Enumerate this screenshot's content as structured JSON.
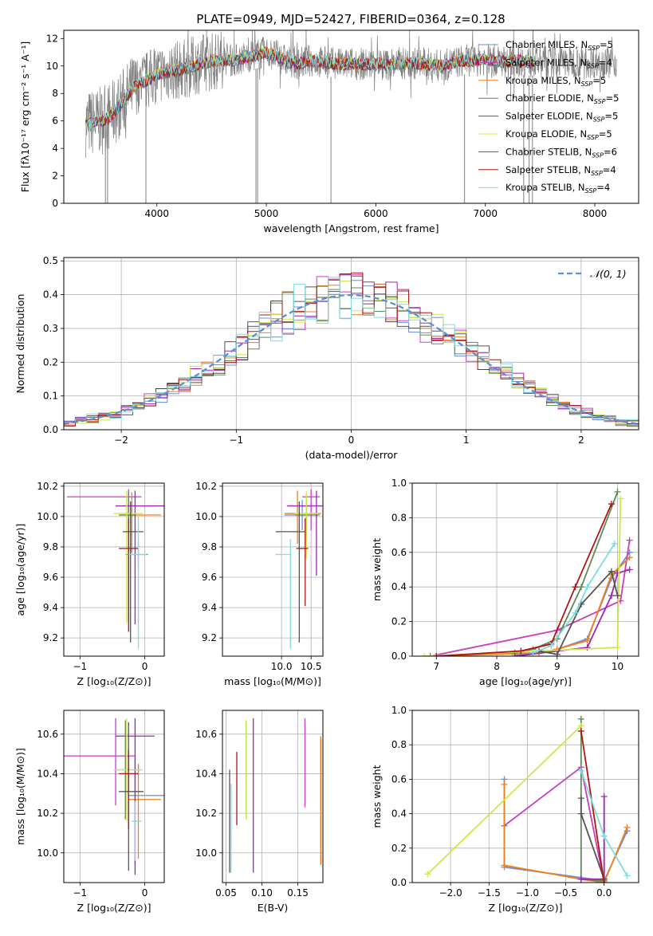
{
  "figure": {
    "title": "PLATE=0949, MJD=52427, FIBERID=0364, z=0.128"
  },
  "colors": {
    "Chabrier MILES": "#6b8fd6",
    "Salpeter MILES": "#c93dc0",
    "Kroupa MILES": "#f07f1a",
    "Chabrier ELODIE": "#5a8a5a",
    "Salpeter ELODIE": "#9b27b0",
    "Kroupa ELODIE": "#cde84a",
    "Chabrier STELIB": "#555555",
    "Salpeter STELIB": "#b01515",
    "Kroupa STELIB": "#7fdcdc",
    "data": "#808080",
    "gauss": "#5b8fd6"
  },
  "chart_data": [
    {
      "id": "spectrum",
      "type": "line",
      "xlabel": "wavelength [Angstrom, rest frame]",
      "ylabel": "Flux [fλ10⁻¹⁷ erg cm⁻² s⁻¹ A⁻¹]",
      "xlim": [
        3150,
        8400
      ],
      "ylim": [
        0,
        12.6
      ],
      "xticks": [
        "4000",
        "5000",
        "6000",
        "7000",
        "8000"
      ],
      "yticks": [
        "0",
        "2",
        "4",
        "6",
        "8",
        "10",
        "12"
      ],
      "legend_position": "top-right",
      "legend": [
        {
          "name": "Chabrier MILES",
          "nssp": "5"
        },
        {
          "name": "Salpeter MILES",
          "nssp": "4"
        },
        {
          "name": "Kroupa MILES",
          "nssp": "5"
        },
        {
          "name": "Chabrier ELODIE",
          "nssp": "5"
        },
        {
          "name": "Salpeter ELODIE",
          "nssp": "5"
        },
        {
          "name": "Kroupa ELODIE",
          "nssp": "5"
        },
        {
          "name": "Chabrier STELIB",
          "nssp": "6"
        },
        {
          "name": "Salpeter STELIB",
          "nssp": "4"
        },
        {
          "name": "Kroupa STELIB",
          "nssp": "4"
        }
      ],
      "legend_prefix": "N",
      "legend_sub": "SSP",
      "continuum": {
        "x": [
          3350,
          3500,
          3600,
          3700,
          3800,
          3900,
          4000,
          4100,
          4200,
          4300,
          4400,
          4500,
          4600,
          4700,
          4800,
          4900,
          5000,
          5100,
          5200,
          5300,
          5400,
          5500,
          5600,
          5700,
          5800,
          5900,
          6000,
          6100,
          6200,
          6300,
          6400,
          6500,
          6600,
          6700,
          6800,
          6900,
          7000,
          7100,
          7200,
          7300,
          7400
        ],
        "y": [
          5.8,
          6.0,
          6.5,
          7.5,
          8.6,
          8.9,
          9.4,
          9.6,
          9.7,
          9.9,
          10.2,
          10.3,
          10.5,
          10.4,
          10.6,
          10.8,
          11.0,
          10.7,
          10.3,
          10.2,
          10.4,
          10.3,
          10.2,
          10.1,
          10.2,
          10.1,
          10.2,
          10.1,
          10.2,
          10.2,
          10.2,
          10.1,
          10.0,
          10.2,
          10.4,
          10.4,
          10.5,
          10.4,
          10.3,
          10.4,
          10.3
        ]
      },
      "data_extent": [
        3350,
        8200
      ],
      "models_extent": [
        3350,
        7450
      ],
      "absorption_dips": [
        3530,
        3550,
        3900,
        4905,
        4920,
        5590,
        6810,
        7350,
        7400,
        7430
      ]
    },
    {
      "id": "residuals",
      "type": "step",
      "xlabel": "(data-model)/error",
      "ylabel": "Normed distribution",
      "xlim": [
        -2.5,
        2.5
      ],
      "ylim": [
        0,
        0.51
      ],
      "xticks": [
        "−2",
        "−1",
        "0",
        "1",
        "2"
      ],
      "yticks": [
        "0.0",
        "0.1",
        "0.2",
        "0.3",
        "0.4",
        "0.5"
      ],
      "bin_width": 0.1,
      "gauss_label": "𝒩(0, 1)",
      "legend_position": "top-right"
    },
    {
      "id": "age_vs_z",
      "type": "errorbar",
      "xlabel": "Z [log₁₀(Z/Z⊙)]",
      "ylabel": "age  [log₁₀(age/yr)]",
      "xlim": [
        -1.25,
        0.3
      ],
      "ylim": [
        9.08,
        10.22
      ],
      "xticks": [
        "−1",
        "0"
      ],
      "yticks": [
        "9.2",
        "9.4",
        "9.6",
        "9.8",
        "10.0",
        "10.2"
      ],
      "points": [
        {
          "s": "Chabrier MILES",
          "x": -0.1,
          "xe": [
            0.2,
            0.15
          ],
          "y": 9.75,
          "ye": [
            0.1,
            0.1
          ]
        },
        {
          "s": "Salpeter MILES",
          "x": -0.25,
          "xe": [
            0.95,
            0.2
          ],
          "y": 10.13,
          "ye": [
            0.22,
            0.05
          ]
        },
        {
          "s": "Kroupa MILES",
          "x": -0.2,
          "xe": [
            0.2,
            0.45
          ],
          "y": 10.01,
          "ye": [
            0.25,
            0.15
          ]
        },
        {
          "s": "Chabrier ELODIE",
          "x": -0.25,
          "xe": [
            0.15,
            0.1
          ],
          "y": 10.01,
          "ye": [
            0.7,
            0.15
          ]
        },
        {
          "s": "Salpeter ELODIE",
          "x": -0.15,
          "xe": [
            0.3,
            0.45
          ],
          "y": 10.07,
          "ye": [
            0.78,
            0.1
          ]
        },
        {
          "s": "Kroupa ELODIE",
          "x": -0.28,
          "xe": [
            0.2,
            0.25
          ],
          "y": 10.02,
          "ye": [
            0.72,
            0.15
          ]
        },
        {
          "s": "Chabrier STELIB",
          "x": -0.22,
          "xe": [
            0.12,
            0.2
          ],
          "y": 9.9,
          "ye": [
            0.73,
            0.2
          ]
        },
        {
          "s": "Salpeter STELIB",
          "x": -0.25,
          "xe": [
            0.15,
            0.15
          ],
          "y": 9.79,
          "ye": [
            0.55,
            0.2
          ]
        },
        {
          "s": "Kroupa STELIB",
          "x": -0.1,
          "xe": [
            0.15,
            0.12
          ],
          "y": 9.75,
          "ye": [
            0.62,
            0.25
          ]
        }
      ]
    },
    {
      "id": "age_vs_mass",
      "type": "errorbar",
      "xlabel": "mass [log₁₀(M/M⊙)]",
      "ylabel": "",
      "xlim": [
        9.0,
        10.7
      ],
      "ylim": [
        9.08,
        10.22
      ],
      "xticks": [
        "10.0",
        "10.5"
      ],
      "yticks": [
        "9.2",
        "9.4",
        "9.6",
        "9.8",
        "10.0",
        "10.2"
      ],
      "points": [
        {
          "s": "Chabrier MILES",
          "x": 10.35,
          "xe": [
            0.3,
            0.3
          ],
          "y": 10.01,
          "ye": [
            0.1,
            0.1
          ]
        },
        {
          "s": "Salpeter MILES",
          "x": 10.5,
          "xe": [
            0.15,
            0.15
          ],
          "y": 10.13,
          "ye": [
            0.22,
            0.05
          ]
        },
        {
          "s": "Kroupa MILES",
          "x": 10.27,
          "xe": [
            0.22,
            0.4
          ],
          "y": 10.02,
          "ye": [
            0.2,
            0.15
          ]
        },
        {
          "s": "Chabrier ELODIE",
          "x": 10.42,
          "xe": [
            0.2,
            0.2
          ],
          "y": 10.01,
          "ye": [
            0.15,
            0.1
          ]
        },
        {
          "s": "Salpeter ELODIE",
          "x": 10.59,
          "xe": [
            0.5,
            0.1
          ],
          "y": 10.07,
          "ye": [
            0.46,
            0.1
          ]
        },
        {
          "s": "Kroupa ELODIE",
          "x": 10.42,
          "xe": [
            0.2,
            0.2
          ],
          "y": 10.02,
          "ye": [
            0.3,
            0.15
          ]
        },
        {
          "s": "Chabrier STELIB",
          "x": 10.3,
          "xe": [
            0.4,
            0.1
          ],
          "y": 9.9,
          "ye": [
            0.73,
            0.2
          ]
        },
        {
          "s": "Salpeter STELIB",
          "x": 10.4,
          "xe": [
            0.15,
            0.05
          ],
          "y": 9.79,
          "ye": [
            0.38,
            0.2
          ]
        },
        {
          "s": "Kroupa STELIB",
          "x": 10.15,
          "xe": [
            0.25,
            0.0
          ],
          "y": 9.75,
          "ye": [
            0.62,
            0.1
          ]
        }
      ]
    },
    {
      "id": "weight_vs_age",
      "type": "line",
      "xlabel": "age  [log₁₀(age/yr)]",
      "ylabel": "mass weight",
      "xlim": [
        6.6,
        10.35
      ],
      "ylim": [
        0,
        1.0
      ],
      "xticks": [
        "7",
        "8",
        "9",
        "10"
      ],
      "yticks": [
        "0.0",
        "0.2",
        "0.4",
        "0.6",
        "0.8",
        "1.0"
      ],
      "series": [
        {
          "s": "Chabrier MILES",
          "x": [
            8.3,
            8.7,
            9.0,
            9.5,
            9.9,
            10.2
          ],
          "y": [
            0.01,
            0.02,
            0.04,
            0.1,
            0.45,
            0.6
          ]
        },
        {
          "s": "Salpeter MILES",
          "x": [
            6.9,
            9.0,
            10.05,
            10.2
          ],
          "y": [
            0.0,
            0.15,
            0.32,
            0.67
          ]
        },
        {
          "s": "Kroupa MILES",
          "x": [
            7.0,
            8.7,
            9.0,
            9.5,
            9.9,
            10.2
          ],
          "y": [
            0.0,
            0.02,
            0.04,
            0.09,
            0.47,
            0.57
          ]
        },
        {
          "s": "Chabrier ELODIE",
          "x": [
            8.3,
            8.6,
            9.0,
            9.4,
            10.0
          ],
          "y": [
            0.02,
            0.04,
            0.1,
            0.4,
            0.95
          ]
        },
        {
          "s": "Salpeter ELODIE",
          "x": [
            8.3,
            9.5,
            9.9,
            10.0,
            10.2
          ],
          "y": [
            0.0,
            0.05,
            0.35,
            0.48,
            0.5
          ]
        },
        {
          "s": "Kroupa ELODIE",
          "x": [
            6.8,
            10.0,
            10.05
          ],
          "y": [
            0.0,
            0.05,
            0.91
          ]
        },
        {
          "s": "Chabrier STELIB",
          "x": [
            8.7,
            9.0,
            9.4,
            9.9,
            10.0
          ],
          "y": [
            0.03,
            0.01,
            0.3,
            0.49,
            0.35
          ]
        },
        {
          "s": "Salpeter STELIB",
          "x": [
            7.0,
            8.4,
            8.9,
            9.3,
            9.9
          ],
          "y": [
            0.0,
            0.03,
            0.07,
            0.4,
            0.88
          ]
        },
        {
          "s": "Kroupa STELIB",
          "x": [
            8.6,
            8.9,
            9.3,
            9.5,
            9.95
          ],
          "y": [
            0.02,
            0.06,
            0.25,
            0.4,
            0.65
          ]
        }
      ]
    },
    {
      "id": "mass_vs_z",
      "type": "errorbar",
      "xlabel": "Z [log₁₀(Z/Z⊙)]",
      "ylabel": "mass [log₁₀(M/M⊙)]",
      "xlim": [
        -1.25,
        0.3
      ],
      "ylim": [
        9.85,
        10.72
      ],
      "xticks": [
        "−1",
        "0"
      ],
      "yticks": [
        "10.0",
        "10.2",
        "10.4",
        "10.6"
      ],
      "points": [
        {
          "s": "Chabrier MILES",
          "x": -0.15,
          "xe": [
            0.1,
            0.45
          ],
          "y": 10.29,
          "ye": [
            0.35,
            0.2
          ]
        },
        {
          "s": "Salpeter MILES",
          "x": -0.45,
          "xe": [
            0.8,
            0.3
          ],
          "y": 10.49,
          "ye": [
            0.25,
            0.19
          ]
        },
        {
          "s": "Kroupa MILES",
          "x": -0.1,
          "xe": [
            0.15,
            0.35
          ],
          "y": 10.27,
          "ye": [
            0.3,
            0.18
          ]
        },
        {
          "s": "Chabrier ELODIE",
          "x": -0.3,
          "xe": [
            0.15,
            0.25
          ],
          "y": 10.42,
          "ye": [
            0.25,
            0.25
          ]
        },
        {
          "s": "Salpeter ELODIE",
          "x": -0.15,
          "xe": [
            0.3,
            0.3
          ],
          "y": 10.59,
          "ye": [
            0.7,
            0.09
          ]
        },
        {
          "s": "Kroupa ELODIE",
          "x": -0.28,
          "xe": [
            0.2,
            0.25
          ],
          "y": 10.42,
          "ye": [
            0.26,
            0.26
          ]
        },
        {
          "s": "Chabrier STELIB",
          "x": -0.25,
          "xe": [
            0.15,
            0.23
          ],
          "y": 10.31,
          "ye": [
            0.4,
            0.35
          ]
        },
        {
          "s": "Salpeter STELIB",
          "x": -0.25,
          "xe": [
            0.15,
            0.15
          ],
          "y": 10.4,
          "ye": [
            0.28,
            0.12
          ]
        },
        {
          "s": "Kroupa STELIB",
          "x": -0.15,
          "xe": [
            0.05,
            0.1
          ],
          "y": 10.16,
          "ye": [
            0.2,
            0.1
          ]
        }
      ]
    },
    {
      "id": "mass_vs_ebv",
      "type": "errorbar",
      "xlabel": "E(B-V)",
      "ylabel": "",
      "xlim": [
        0.045,
        0.185
      ],
      "ylim": [
        9.85,
        10.72
      ],
      "xticks": [
        "0.05",
        "0.10",
        "0.15"
      ],
      "yticks": [
        "10.0",
        "10.2",
        "10.4",
        "10.6"
      ],
      "points": [
        {
          "s": "Chabrier MILES",
          "x": 0.182,
          "xe": [
            0,
            0
          ],
          "y": 10.29,
          "ye": [
            0.35,
            0.29
          ]
        },
        {
          "s": "Salpeter MILES",
          "x": 0.16,
          "xe": [
            0,
            0
          ],
          "y": 10.49,
          "ye": [
            0.26,
            0.19
          ]
        },
        {
          "s": "Kroupa MILES",
          "x": 0.182,
          "xe": [
            0,
            0
          ],
          "y": 10.27,
          "ye": [
            0.33,
            0.32
          ]
        },
        {
          "s": "Chabrier ELODIE",
          "x": 0.078,
          "xe": [
            0,
            0
          ],
          "y": 10.42,
          "ye": [
            0.25,
            0.25
          ]
        },
        {
          "s": "Salpeter ELODIE",
          "x": 0.088,
          "xe": [
            0,
            0
          ],
          "y": 10.59,
          "ye": [
            0.69,
            0.09
          ]
        },
        {
          "s": "Kroupa ELODIE",
          "x": 0.078,
          "xe": [
            0,
            0
          ],
          "y": 10.42,
          "ye": [
            0.25,
            0.25
          ]
        },
        {
          "s": "Chabrier STELIB",
          "x": 0.055,
          "xe": [
            0,
            0
          ],
          "y": 10.1,
          "ye": [
            0.2,
            0.32
          ]
        },
        {
          "s": "Salpeter STELIB",
          "x": 0.065,
          "xe": [
            0,
            0
          ],
          "y": 10.35,
          "ye": [
            0.21,
            0.16
          ]
        },
        {
          "s": "Kroupa STELIB",
          "x": 0.057,
          "xe": [
            0,
            0
          ],
          "y": 10.15,
          "ye": [
            0.25,
            0.2
          ]
        }
      ]
    },
    {
      "id": "weight_vs_z",
      "type": "line",
      "xlabel": "Z [log₁₀(Z/Z⊙)]",
      "ylabel": "mass weight",
      "xlim": [
        -2.5,
        0.45
      ],
      "ylim": [
        0,
        1.0
      ],
      "xticks": [
        "−2.0",
        "−1.5",
        "−1.0",
        "−0.5",
        "0.0"
      ],
      "yticks": [
        "0.0",
        "0.2",
        "0.4",
        "0.6",
        "0.8",
        "1.0"
      ],
      "series": [
        {
          "s": "Chabrier MILES",
          "x": [
            -1.3,
            -1.3,
            0.0,
            0.3
          ],
          "y": [
            0.6,
            0.09,
            0.01,
            0.3
          ]
        },
        {
          "s": "Salpeter MILES",
          "x": [
            -1.3,
            -0.3,
            0.0
          ],
          "y": [
            0.33,
            0.67,
            0.0
          ]
        },
        {
          "s": "Kroupa MILES",
          "x": [
            -1.3,
            -1.3,
            -0.3,
            0.0,
            0.3
          ],
          "y": [
            0.57,
            0.1,
            0.02,
            0.0,
            0.32
          ]
        },
        {
          "s": "Chabrier ELODIE",
          "x": [
            -0.3,
            -0.3,
            0.0
          ],
          "y": [
            0.95,
            0.02,
            0.01
          ]
        },
        {
          "s": "Salpeter ELODIE",
          "x": [
            -0.3,
            0.0,
            0.0
          ],
          "y": [
            0.02,
            0.02,
            0.5
          ]
        },
        {
          "s": "Kroupa ELODIE",
          "x": [
            -2.3,
            -0.3
          ],
          "y": [
            0.05,
            0.91
          ]
        },
        {
          "s": "Chabrier STELIB",
          "x": [
            -0.3,
            -0.3,
            0.0
          ],
          "y": [
            0.49,
            0.4,
            0.02
          ]
        },
        {
          "s": "Salpeter STELIB",
          "x": [
            -0.3,
            0.0
          ],
          "y": [
            0.88,
            0.0
          ]
        },
        {
          "s": "Kroupa STELIB",
          "x": [
            -0.3,
            0.0,
            0.3
          ],
          "y": [
            0.65,
            0.27,
            0.04
          ]
        }
      ]
    }
  ]
}
